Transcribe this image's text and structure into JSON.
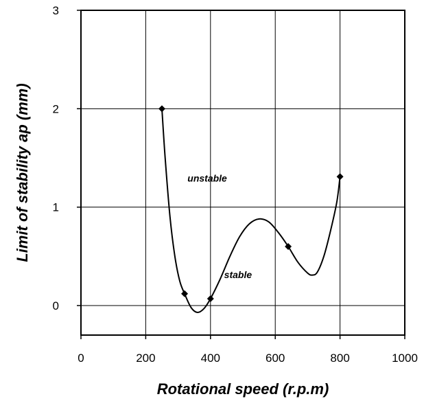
{
  "chart_data": {
    "type": "line",
    "xlabel": "Rotational speed (r.p.m)",
    "ylabel": "Limit of stability ap (mm)",
    "xlim": [
      0,
      1000
    ],
    "ylim": [
      -0.3,
      3
    ],
    "xticks": [
      0,
      200,
      400,
      600,
      800,
      1000
    ],
    "yticks": [
      0,
      1,
      2,
      3
    ],
    "xtick_labels": [
      "0",
      "200",
      "400",
      "600",
      "800",
      "1000"
    ],
    "ytick_labels": [
      "0",
      "1",
      "2",
      "3"
    ],
    "grid": true,
    "series": [
      {
        "marker": "diamond",
        "color": "#000000",
        "points": [
          {
            "x": 250,
            "y": 2.0
          },
          {
            "x": 320,
            "y": 0.12
          },
          {
            "x": 400,
            "y": 0.07
          },
          {
            "x": 640,
            "y": 0.6
          },
          {
            "x": 800,
            "y": 1.31
          }
        ],
        "curve": [
          [
            250,
            2.0
          ],
          [
            260,
            1.5
          ],
          [
            275,
            0.9
          ],
          [
            290,
            0.5
          ],
          [
            305,
            0.25
          ],
          [
            320,
            0.12
          ],
          [
            340,
            -0.02
          ],
          [
            360,
            -0.07
          ],
          [
            380,
            -0.03
          ],
          [
            400,
            0.07
          ],
          [
            430,
            0.27
          ],
          [
            460,
            0.5
          ],
          [
            490,
            0.7
          ],
          [
            520,
            0.83
          ],
          [
            550,
            0.88
          ],
          [
            580,
            0.85
          ],
          [
            610,
            0.74
          ],
          [
            640,
            0.6
          ],
          [
            670,
            0.44
          ],
          [
            700,
            0.33
          ],
          [
            715,
            0.31
          ],
          [
            730,
            0.34
          ],
          [
            750,
            0.5
          ],
          [
            770,
            0.75
          ],
          [
            790,
            1.05
          ],
          [
            800,
            1.31
          ]
        ]
      }
    ],
    "annotations": [
      {
        "text": "unstable",
        "x": 390,
        "y": 1.26
      },
      {
        "text": "stable",
        "x": 485,
        "y": 0.28
      }
    ]
  }
}
